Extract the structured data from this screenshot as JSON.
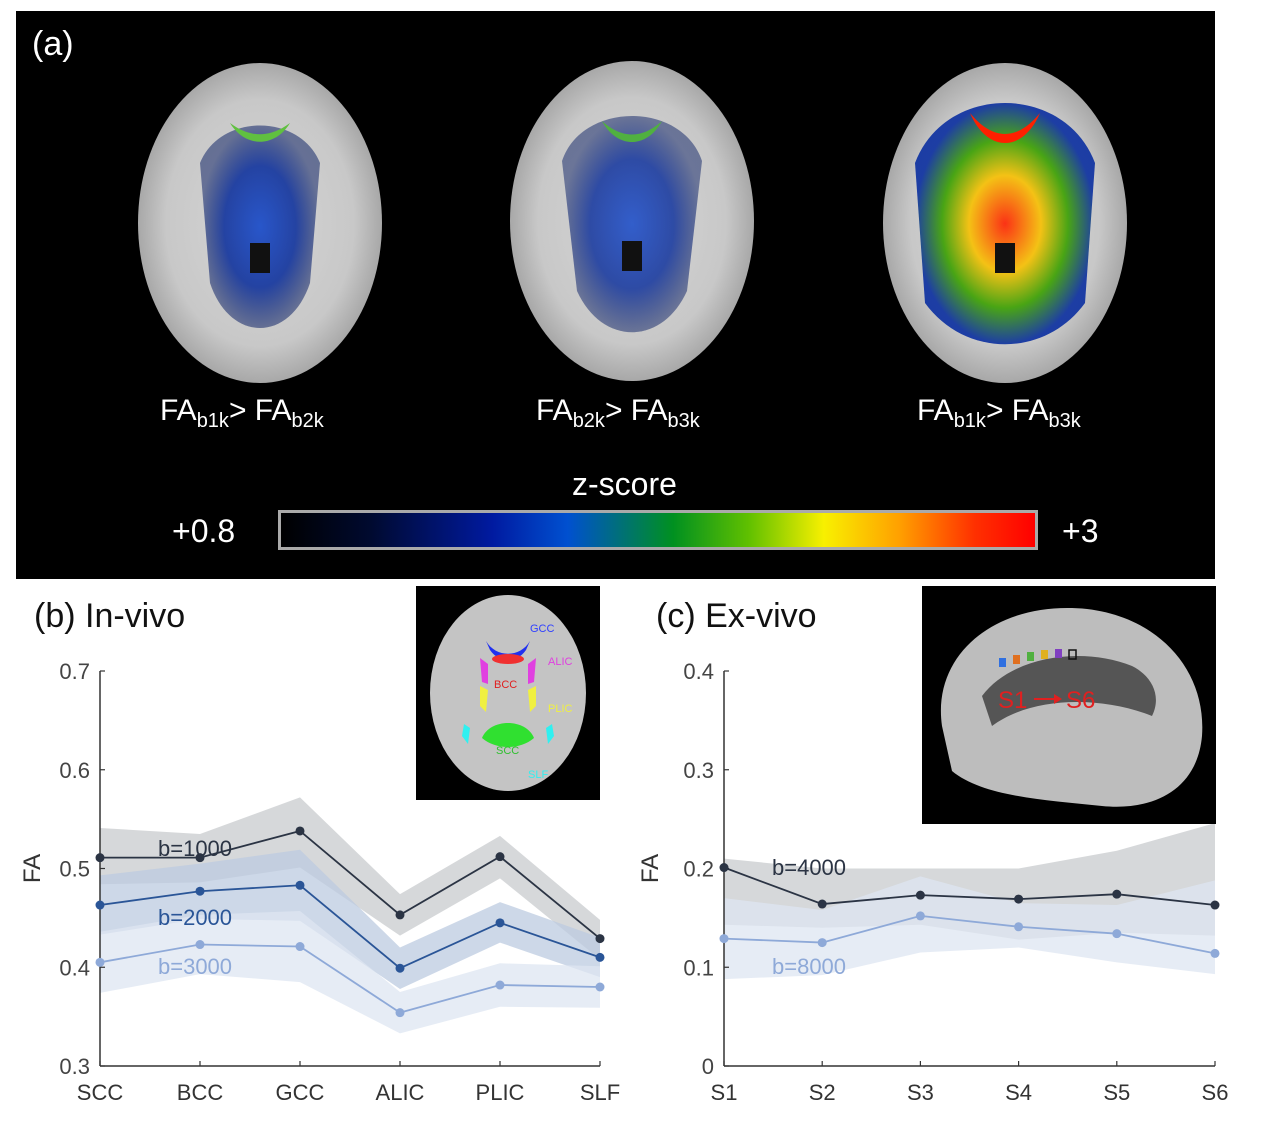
{
  "panel_a": {
    "label": "(a)",
    "maps": [
      {
        "main1": "FA",
        "sub1": "b1k",
        "mid": "> FA",
        "sub2": "b2k"
      },
      {
        "main1": "FA",
        "sub1": "b2k",
        "mid": "> FA",
        "sub2": "b3k"
      },
      {
        "main1": "FA",
        "sub1": "b1k",
        "mid": "> FA",
        "sub2": "b3k"
      }
    ],
    "colorbar": {
      "title": "z-score",
      "min": "+0.8",
      "max": "+3"
    }
  },
  "panel_b": {
    "title": "(b) In-vivo",
    "inset_labels": [
      "GCC",
      "ALIC",
      "BCC",
      "PLIC",
      "SCC",
      "SLF"
    ]
  },
  "panel_c": {
    "title": "(c) Ex-vivo",
    "inset_labels": [
      "S1",
      "S6"
    ]
  },
  "chart_data": [
    {
      "type": "line",
      "title": "(b) In-vivo",
      "categories": [
        "SCC",
        "BCC",
        "GCC",
        "ALIC",
        "PLIC",
        "SLF"
      ],
      "ylabel": "FA",
      "ylim": [
        0.3,
        0.7
      ],
      "yticks": [
        "0.3",
        "0.4",
        "0.5",
        "0.6",
        "0.7"
      ],
      "series": [
        {
          "name": "b=1000",
          "values": [
            0.511,
            0.511,
            0.538,
            0.453,
            0.512,
            0.429
          ],
          "lower": [
            0.484,
            0.486,
            0.501,
            0.432,
            0.49,
            0.408
          ],
          "upper": [
            0.541,
            0.535,
            0.572,
            0.474,
            0.533,
            0.448
          ],
          "color": "#2b3444",
          "band": "#c8cbce"
        },
        {
          "name": "b=2000",
          "values": [
            0.463,
            0.477,
            0.483,
            0.399,
            0.445,
            0.41
          ],
          "lower": [
            0.433,
            0.449,
            0.447,
            0.378,
            0.425,
            0.39
          ],
          "upper": [
            0.493,
            0.505,
            0.519,
            0.42,
            0.466,
            0.43
          ],
          "color": "#2a5597",
          "band": "#bccbe0"
        },
        {
          "name": "b=3000",
          "values": [
            0.405,
            0.423,
            0.421,
            0.354,
            0.382,
            0.38
          ],
          "lower": [
            0.374,
            0.393,
            0.385,
            0.333,
            0.36,
            0.359
          ],
          "upper": [
            0.436,
            0.453,
            0.457,
            0.375,
            0.404,
            0.401
          ],
          "color": "#8ea9d8",
          "band": "#dde6f2"
        }
      ]
    },
    {
      "type": "line",
      "title": "(c) Ex-vivo",
      "categories": [
        "S1",
        "S2",
        "S3",
        "S4",
        "S5",
        "S6"
      ],
      "ylabel": "FA",
      "ylim": [
        0,
        0.4
      ],
      "yticks": [
        "0",
        "0.1",
        "0.2",
        "0.3",
        "0.4"
      ],
      "series": [
        {
          "name": "b=4000",
          "values": [
            0.201,
            0.164,
            0.173,
            0.169,
            0.174,
            0.163
          ],
          "lower": [
            0.143,
            0.14,
            0.143,
            0.128,
            0.135,
            0.132
          ],
          "upper": [
            0.21,
            0.2,
            0.2,
            0.2,
            0.218,
            0.246
          ],
          "color": "#2b3444",
          "band": "#c8cbce"
        },
        {
          "name": "b=8000",
          "values": [
            0.129,
            0.125,
            0.152,
            0.141,
            0.134,
            0.114
          ],
          "lower": [
            0.088,
            0.092,
            0.115,
            0.12,
            0.105,
            0.093
          ],
          "upper": [
            0.17,
            0.158,
            0.192,
            0.165,
            0.163,
            0.188
          ],
          "color": "#8ea9d8",
          "band": "#dde6f2"
        }
      ]
    }
  ]
}
